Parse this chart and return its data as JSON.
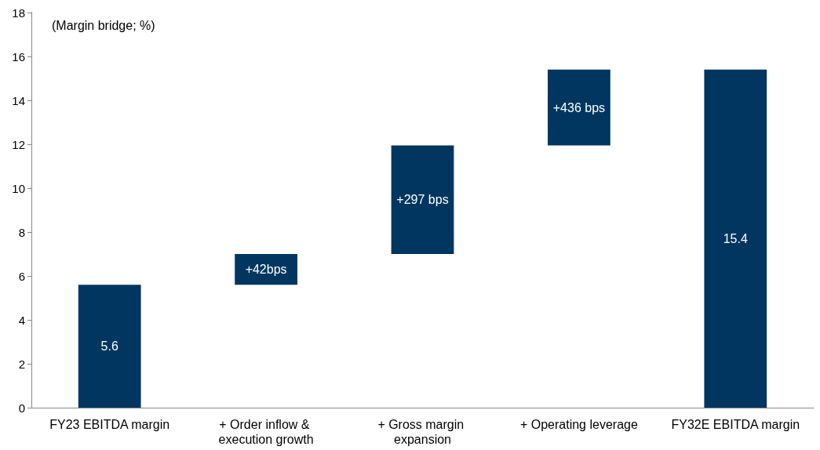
{
  "chart_data": {
    "type": "bar",
    "categories": [
      "FY23 EBITDA margin",
      "+ Order inflow & execution growth",
      "+ Gross margin expansion",
      "+ Operating leverage",
      "FY32E EBITDA margin"
    ],
    "base": [
      0,
      5.6,
      7.0,
      11.95,
      0
    ],
    "values": [
      5.6,
      1.4,
      4.95,
      3.45,
      15.4
    ],
    "value_labels": [
      "5.6",
      null,
      null,
      null,
      "15.4"
    ],
    "color": "#003660",
    "ylim": [
      0,
      18
    ],
    "yticks": [
      0,
      2,
      4,
      6,
      8,
      10,
      12,
      14,
      16,
      18
    ],
    "grid": false,
    "annotations": [
      "(Margin bridge; %)",
      "+42bps",
      "+297 bps",
      "+436 bps"
    ]
  }
}
